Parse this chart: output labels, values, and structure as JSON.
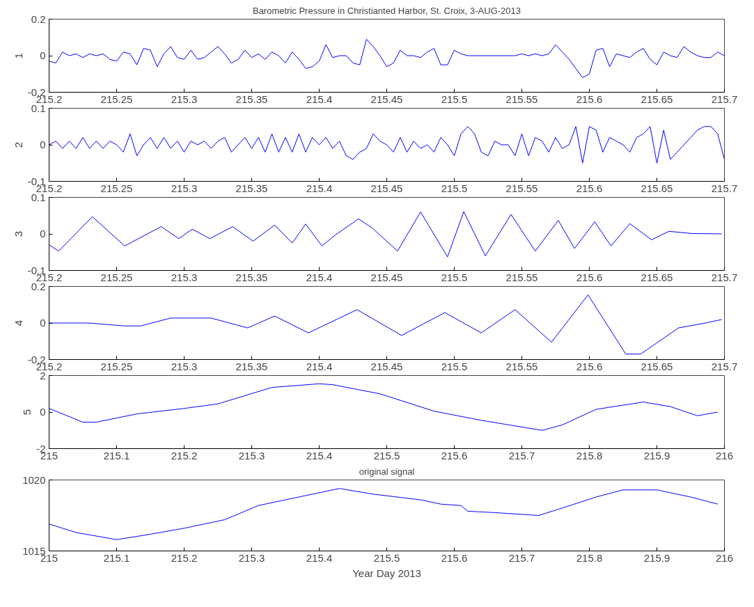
{
  "chart_data": [
    {
      "type": "line",
      "title": "Barometric Pressure in Christianted Harbor, St. Croix, 3-AUG-2013",
      "ylabel": "1",
      "xlim": [
        215.2,
        215.7
      ],
      "xticks": [
        215.2,
        215.25,
        215.3,
        215.35,
        215.4,
        215.45,
        215.5,
        215.55,
        215.6,
        215.65,
        215.7
      ],
      "ylim": [
        -0.2,
        0.2
      ],
      "yticks": [
        -0.2,
        0,
        0.2
      ],
      "grid": false,
      "x": [
        215.2,
        215.205,
        215.21,
        215.215,
        215.22,
        215.225,
        215.23,
        215.235,
        215.24,
        215.245,
        215.25,
        215.255,
        215.26,
        215.265,
        215.27,
        215.275,
        215.28,
        215.285,
        215.29,
        215.295,
        215.3,
        215.305,
        215.31,
        215.315,
        215.32,
        215.325,
        215.33,
        215.335,
        215.34,
        215.345,
        215.35,
        215.355,
        215.36,
        215.365,
        215.37,
        215.375,
        215.38,
        215.385,
        215.39,
        215.395,
        215.4,
        215.405,
        215.41,
        215.415,
        215.42,
        215.425,
        215.43,
        215.435,
        215.44,
        215.445,
        215.45,
        215.455,
        215.46,
        215.465,
        215.47,
        215.475,
        215.48,
        215.485,
        215.49,
        215.495,
        215.5,
        215.505,
        215.51,
        215.515,
        215.52,
        215.525,
        215.53,
        215.535,
        215.54,
        215.545,
        215.55,
        215.555,
        215.56,
        215.565,
        215.57,
        215.575,
        215.58,
        215.585,
        215.59,
        215.595,
        215.6,
        215.605,
        215.61,
        215.615,
        215.62,
        215.625,
        215.63,
        215.635,
        215.64,
        215.645,
        215.65,
        215.655,
        215.66,
        215.665,
        215.67,
        215.675,
        215.68,
        215.685,
        215.69,
        215.695,
        215.7
      ],
      "series": [
        {
          "color": "#0000ff",
          "values": [
            -0.03,
            -0.04,
            0.02,
            0.0,
            0.01,
            -0.01,
            0.01,
            0.0,
            0.01,
            -0.02,
            -0.03,
            0.02,
            0.01,
            -0.05,
            0.04,
            0.03,
            -0.06,
            0.01,
            0.05,
            -0.01,
            -0.02,
            0.03,
            -0.02,
            -0.01,
            0.02,
            0.05,
            0.01,
            -0.04,
            -0.02,
            0.03,
            -0.01,
            0.01,
            -0.02,
            0.02,
            0.0,
            -0.04,
            0.02,
            -0.02,
            -0.07,
            -0.06,
            -0.03,
            0.06,
            -0.01,
            0.0,
            0.0,
            -0.04,
            -0.05,
            0.09,
            0.05,
            0.0,
            -0.06,
            -0.04,
            0.03,
            0.0,
            0.0,
            -0.01,
            0.02,
            0.04,
            -0.05,
            -0.05,
            0.03,
            0.01,
            0.0,
            0.0,
            0.0,
            0.0,
            0.0,
            0.0,
            0.0,
            0.0,
            0.01,
            0.0,
            0.01,
            0.0,
            0.01,
            0.06,
            0.02,
            -0.02,
            -0.07,
            -0.12,
            -0.1,
            0.03,
            0.04,
            -0.06,
            0.01,
            0.0,
            -0.01,
            0.02,
            0.04,
            -0.02,
            -0.05,
            0.02,
            0.0,
            -0.01,
            0.05,
            0.02,
            0.0,
            -0.01,
            -0.01,
            0.02,
            0.0
          ]
        }
      ]
    },
    {
      "type": "line",
      "ylabel": "2",
      "xlim": [
        215.2,
        215.7
      ],
      "xticks": [
        215.2,
        215.25,
        215.3,
        215.35,
        215.4,
        215.45,
        215.5,
        215.55,
        215.6,
        215.65,
        215.7
      ],
      "ylim": [
        -0.1,
        0.1
      ],
      "yticks": [
        -0.1,
        0,
        0.1
      ],
      "grid": false,
      "x": [
        215.2,
        215.205,
        215.21,
        215.215,
        215.22,
        215.225,
        215.23,
        215.235,
        215.24,
        215.245,
        215.25,
        215.255,
        215.26,
        215.265,
        215.27,
        215.275,
        215.28,
        215.285,
        215.29,
        215.295,
        215.3,
        215.305,
        215.31,
        215.315,
        215.32,
        215.325,
        215.33,
        215.335,
        215.34,
        215.345,
        215.35,
        215.355,
        215.36,
        215.365,
        215.37,
        215.375,
        215.38,
        215.385,
        215.39,
        215.395,
        215.4,
        215.405,
        215.41,
        215.415,
        215.42,
        215.425,
        215.43,
        215.435,
        215.44,
        215.445,
        215.45,
        215.455,
        215.46,
        215.465,
        215.47,
        215.475,
        215.48,
        215.485,
        215.49,
        215.495,
        215.5,
        215.505,
        215.51,
        215.515,
        215.52,
        215.525,
        215.53,
        215.535,
        215.54,
        215.545,
        215.55,
        215.555,
        215.56,
        215.565,
        215.57,
        215.575,
        215.58,
        215.585,
        215.59,
        215.595,
        215.6,
        215.605,
        215.61,
        215.615,
        215.62,
        215.625,
        215.63,
        215.635,
        215.64,
        215.645,
        215.65,
        215.655,
        215.66,
        215.665,
        215.67,
        215.675,
        215.68,
        215.685,
        215.69,
        215.695,
        215.7
      ],
      "series": [
        {
          "color": "#0000ff",
          "values": [
            0.0,
            0.01,
            -0.01,
            0.01,
            -0.01,
            0.02,
            -0.01,
            0.01,
            -0.01,
            0.01,
            0.0,
            -0.02,
            0.03,
            -0.03,
            0.0,
            0.02,
            -0.01,
            0.02,
            -0.01,
            0.01,
            -0.02,
            0.01,
            0.0,
            0.01,
            -0.01,
            0.01,
            0.02,
            -0.02,
            0.0,
            0.02,
            -0.01,
            0.02,
            -0.02,
            0.03,
            -0.02,
            0.02,
            -0.02,
            0.03,
            -0.02,
            0.02,
            0.0,
            0.02,
            -0.01,
            0.01,
            -0.03,
            -0.04,
            -0.02,
            -0.01,
            0.03,
            0.01,
            0.0,
            -0.02,
            0.02,
            -0.02,
            0.01,
            -0.01,
            0.0,
            -0.02,
            0.02,
            0.0,
            -0.03,
            0.03,
            0.05,
            0.03,
            -0.02,
            -0.03,
            0.01,
            0.0,
            0.0,
            -0.03,
            0.03,
            -0.03,
            0.02,
            0.01,
            -0.02,
            0.02,
            -0.01,
            0.0,
            0.05,
            -0.05,
            0.05,
            0.04,
            -0.02,
            0.02,
            0.01,
            0.0,
            -0.02,
            0.02,
            0.03,
            0.05,
            -0.05,
            0.04,
            -0.04,
            -0.02,
            0.0,
            0.02,
            0.04,
            0.05,
            0.05,
            0.03,
            -0.04
          ]
        }
      ]
    },
    {
      "type": "line",
      "ylabel": "3",
      "xlim": [
        215.2,
        215.7
      ],
      "xticks": [
        215.2,
        215.25,
        215.3,
        215.35,
        215.4,
        215.45,
        215.5,
        215.55,
        215.6,
        215.65,
        215.7
      ],
      "ylim": [
        -0.1,
        0.1
      ],
      "yticks": [
        -0.1,
        0,
        0.1
      ],
      "grid": false,
      "x": [
        215.2,
        215.207,
        215.217,
        215.232,
        215.256,
        215.283,
        215.296,
        215.306,
        215.319,
        215.336,
        215.351,
        215.367,
        215.38,
        215.39,
        215.402,
        215.412,
        215.429,
        215.439,
        215.458,
        215.475,
        215.495,
        215.507,
        215.523,
        215.542,
        215.56,
        215.577,
        215.589,
        215.604,
        215.616,
        215.63,
        215.646,
        215.659,
        215.676,
        215.698
      ],
      "series": [
        {
          "color": "#0000ff",
          "values": [
            -0.03,
            -0.047,
            -0.01,
            0.047,
            -0.033,
            0.02,
            -0.013,
            0.013,
            -0.013,
            0.02,
            -0.02,
            0.024,
            -0.025,
            0.027,
            -0.033,
            -0.003,
            0.041,
            0.017,
            -0.047,
            0.06,
            -0.063,
            0.061,
            -0.06,
            0.053,
            -0.047,
            0.037,
            -0.04,
            0.033,
            -0.033,
            0.028,
            -0.016,
            0.007,
            0.001,
            0.0
          ]
        }
      ]
    },
    {
      "type": "line",
      "ylabel": "4",
      "xlim": [
        215.2,
        215.7
      ],
      "xticks": [
        215.2,
        215.25,
        215.3,
        215.35,
        215.4,
        215.45,
        215.5,
        215.55,
        215.6,
        215.65,
        215.7
      ],
      "ylim": [
        -0.2,
        0.2
      ],
      "yticks": [
        -0.2,
        0,
        0.2
      ],
      "grid": false,
      "x": [
        215.2,
        215.229,
        215.256,
        215.268,
        215.29,
        215.32,
        215.347,
        215.367,
        215.392,
        215.428,
        215.461,
        215.493,
        215.52,
        215.545,
        215.572,
        215.599,
        215.627,
        215.638,
        215.666,
        215.686,
        215.698
      ],
      "series": [
        {
          "color": "#0000ff",
          "values": [
            0.0,
            0.0,
            -0.016,
            -0.016,
            0.027,
            0.027,
            -0.027,
            0.038,
            -0.054,
            0.073,
            -0.068,
            0.057,
            -0.054,
            0.073,
            -0.105,
            0.154,
            -0.17,
            -0.17,
            -0.027,
            0.0,
            0.019
          ]
        }
      ]
    },
    {
      "type": "line",
      "ylabel": "5",
      "xlim": [
        215,
        216
      ],
      "xticks": [
        215,
        215.1,
        215.2,
        215.3,
        215.4,
        215.5,
        215.6,
        215.7,
        215.8,
        215.9,
        216
      ],
      "ylim": [
        -2,
        2
      ],
      "yticks": [
        -2,
        0,
        2
      ],
      "grid": false,
      "x": [
        215.0,
        215.05,
        215.07,
        215.13,
        215.2,
        215.25,
        215.29,
        215.33,
        215.4,
        215.42,
        215.49,
        215.57,
        215.64,
        215.73,
        215.76,
        215.81,
        215.88,
        215.92,
        215.96,
        215.99
      ],
      "series": [
        {
          "color": "#0000ff",
          "values": [
            0.2,
            -0.55,
            -0.55,
            -0.1,
            0.2,
            0.45,
            0.9,
            1.35,
            1.55,
            1.5,
            1.0,
            0.05,
            -0.45,
            -1.0,
            -0.7,
            0.15,
            0.55,
            0.3,
            -0.2,
            0.0
          ]
        }
      ]
    },
    {
      "type": "line",
      "title": "original signal",
      "xlabel": "Year Day 2013",
      "xlim": [
        215,
        216
      ],
      "xticks": [
        215,
        215.1,
        215.2,
        215.3,
        215.4,
        215.5,
        215.6,
        215.7,
        215.8,
        215.9,
        216
      ],
      "ylim": [
        1015,
        1020
      ],
      "yticks": [
        1015,
        1020
      ],
      "grid": false,
      "x": [
        215.0,
        215.04,
        215.1,
        215.14,
        215.2,
        215.26,
        215.31,
        215.37,
        215.43,
        215.48,
        215.55,
        215.58,
        215.61,
        215.62,
        215.66,
        215.725,
        215.765,
        215.81,
        215.85,
        215.9,
        215.95,
        215.99
      ],
      "series": [
        {
          "color": "#0000ff",
          "values": [
            1016.9,
            1016.3,
            1015.8,
            1016.1,
            1016.6,
            1017.2,
            1018.2,
            1018.8,
            1019.4,
            1019.0,
            1018.6,
            1018.3,
            1018.2,
            1017.8,
            1017.7,
            1017.5,
            1018.1,
            1018.8,
            1019.3,
            1019.3,
            1018.8,
            1018.3
          ]
        }
      ]
    }
  ]
}
